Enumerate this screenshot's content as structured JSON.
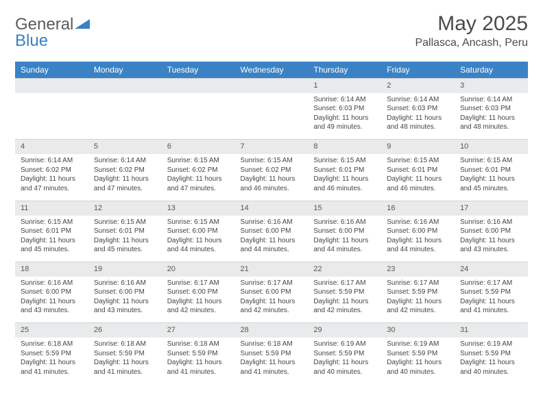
{
  "brand": {
    "text_gray": "General",
    "text_blue": "Blue"
  },
  "title": "May 2025",
  "location": "Pallasca, Ancash, Peru",
  "colors": {
    "header_bg": "#3b82c4",
    "header_text": "#ffffff",
    "daynum_bg": "#e9eaeb",
    "body_text": "#444444",
    "brand_gray": "#5a5a5a",
    "brand_blue": "#3b7fc4"
  },
  "day_headers": [
    "Sunday",
    "Monday",
    "Tuesday",
    "Wednesday",
    "Thursday",
    "Friday",
    "Saturday"
  ],
  "weeks": [
    [
      null,
      null,
      null,
      null,
      {
        "n": "1",
        "sr": "Sunrise: 6:14 AM",
        "ss": "Sunset: 6:03 PM",
        "dl1": "Daylight: 11 hours",
        "dl2": "and 49 minutes."
      },
      {
        "n": "2",
        "sr": "Sunrise: 6:14 AM",
        "ss": "Sunset: 6:03 PM",
        "dl1": "Daylight: 11 hours",
        "dl2": "and 48 minutes."
      },
      {
        "n": "3",
        "sr": "Sunrise: 6:14 AM",
        "ss": "Sunset: 6:03 PM",
        "dl1": "Daylight: 11 hours",
        "dl2": "and 48 minutes."
      }
    ],
    [
      {
        "n": "4",
        "sr": "Sunrise: 6:14 AM",
        "ss": "Sunset: 6:02 PM",
        "dl1": "Daylight: 11 hours",
        "dl2": "and 47 minutes."
      },
      {
        "n": "5",
        "sr": "Sunrise: 6:14 AM",
        "ss": "Sunset: 6:02 PM",
        "dl1": "Daylight: 11 hours",
        "dl2": "and 47 minutes."
      },
      {
        "n": "6",
        "sr": "Sunrise: 6:15 AM",
        "ss": "Sunset: 6:02 PM",
        "dl1": "Daylight: 11 hours",
        "dl2": "and 47 minutes."
      },
      {
        "n": "7",
        "sr": "Sunrise: 6:15 AM",
        "ss": "Sunset: 6:02 PM",
        "dl1": "Daylight: 11 hours",
        "dl2": "and 46 minutes."
      },
      {
        "n": "8",
        "sr": "Sunrise: 6:15 AM",
        "ss": "Sunset: 6:01 PM",
        "dl1": "Daylight: 11 hours",
        "dl2": "and 46 minutes."
      },
      {
        "n": "9",
        "sr": "Sunrise: 6:15 AM",
        "ss": "Sunset: 6:01 PM",
        "dl1": "Daylight: 11 hours",
        "dl2": "and 46 minutes."
      },
      {
        "n": "10",
        "sr": "Sunrise: 6:15 AM",
        "ss": "Sunset: 6:01 PM",
        "dl1": "Daylight: 11 hours",
        "dl2": "and 45 minutes."
      }
    ],
    [
      {
        "n": "11",
        "sr": "Sunrise: 6:15 AM",
        "ss": "Sunset: 6:01 PM",
        "dl1": "Daylight: 11 hours",
        "dl2": "and 45 minutes."
      },
      {
        "n": "12",
        "sr": "Sunrise: 6:15 AM",
        "ss": "Sunset: 6:01 PM",
        "dl1": "Daylight: 11 hours",
        "dl2": "and 45 minutes."
      },
      {
        "n": "13",
        "sr": "Sunrise: 6:15 AM",
        "ss": "Sunset: 6:00 PM",
        "dl1": "Daylight: 11 hours",
        "dl2": "and 44 minutes."
      },
      {
        "n": "14",
        "sr": "Sunrise: 6:16 AM",
        "ss": "Sunset: 6:00 PM",
        "dl1": "Daylight: 11 hours",
        "dl2": "and 44 minutes."
      },
      {
        "n": "15",
        "sr": "Sunrise: 6:16 AM",
        "ss": "Sunset: 6:00 PM",
        "dl1": "Daylight: 11 hours",
        "dl2": "and 44 minutes."
      },
      {
        "n": "16",
        "sr": "Sunrise: 6:16 AM",
        "ss": "Sunset: 6:00 PM",
        "dl1": "Daylight: 11 hours",
        "dl2": "and 44 minutes."
      },
      {
        "n": "17",
        "sr": "Sunrise: 6:16 AM",
        "ss": "Sunset: 6:00 PM",
        "dl1": "Daylight: 11 hours",
        "dl2": "and 43 minutes."
      }
    ],
    [
      {
        "n": "18",
        "sr": "Sunrise: 6:16 AM",
        "ss": "Sunset: 6:00 PM",
        "dl1": "Daylight: 11 hours",
        "dl2": "and 43 minutes."
      },
      {
        "n": "19",
        "sr": "Sunrise: 6:16 AM",
        "ss": "Sunset: 6:00 PM",
        "dl1": "Daylight: 11 hours",
        "dl2": "and 43 minutes."
      },
      {
        "n": "20",
        "sr": "Sunrise: 6:17 AM",
        "ss": "Sunset: 6:00 PM",
        "dl1": "Daylight: 11 hours",
        "dl2": "and 42 minutes."
      },
      {
        "n": "21",
        "sr": "Sunrise: 6:17 AM",
        "ss": "Sunset: 6:00 PM",
        "dl1": "Daylight: 11 hours",
        "dl2": "and 42 minutes."
      },
      {
        "n": "22",
        "sr": "Sunrise: 6:17 AM",
        "ss": "Sunset: 5:59 PM",
        "dl1": "Daylight: 11 hours",
        "dl2": "and 42 minutes."
      },
      {
        "n": "23",
        "sr": "Sunrise: 6:17 AM",
        "ss": "Sunset: 5:59 PM",
        "dl1": "Daylight: 11 hours",
        "dl2": "and 42 minutes."
      },
      {
        "n": "24",
        "sr": "Sunrise: 6:17 AM",
        "ss": "Sunset: 5:59 PM",
        "dl1": "Daylight: 11 hours",
        "dl2": "and 41 minutes."
      }
    ],
    [
      {
        "n": "25",
        "sr": "Sunrise: 6:18 AM",
        "ss": "Sunset: 5:59 PM",
        "dl1": "Daylight: 11 hours",
        "dl2": "and 41 minutes."
      },
      {
        "n": "26",
        "sr": "Sunrise: 6:18 AM",
        "ss": "Sunset: 5:59 PM",
        "dl1": "Daylight: 11 hours",
        "dl2": "and 41 minutes."
      },
      {
        "n": "27",
        "sr": "Sunrise: 6:18 AM",
        "ss": "Sunset: 5:59 PM",
        "dl1": "Daylight: 11 hours",
        "dl2": "and 41 minutes."
      },
      {
        "n": "28",
        "sr": "Sunrise: 6:18 AM",
        "ss": "Sunset: 5:59 PM",
        "dl1": "Daylight: 11 hours",
        "dl2": "and 41 minutes."
      },
      {
        "n": "29",
        "sr": "Sunrise: 6:19 AM",
        "ss": "Sunset: 5:59 PM",
        "dl1": "Daylight: 11 hours",
        "dl2": "and 40 minutes."
      },
      {
        "n": "30",
        "sr": "Sunrise: 6:19 AM",
        "ss": "Sunset: 5:59 PM",
        "dl1": "Daylight: 11 hours",
        "dl2": "and 40 minutes."
      },
      {
        "n": "31",
        "sr": "Sunrise: 6:19 AM",
        "ss": "Sunset: 5:59 PM",
        "dl1": "Daylight: 11 hours",
        "dl2": "and 40 minutes."
      }
    ]
  ]
}
